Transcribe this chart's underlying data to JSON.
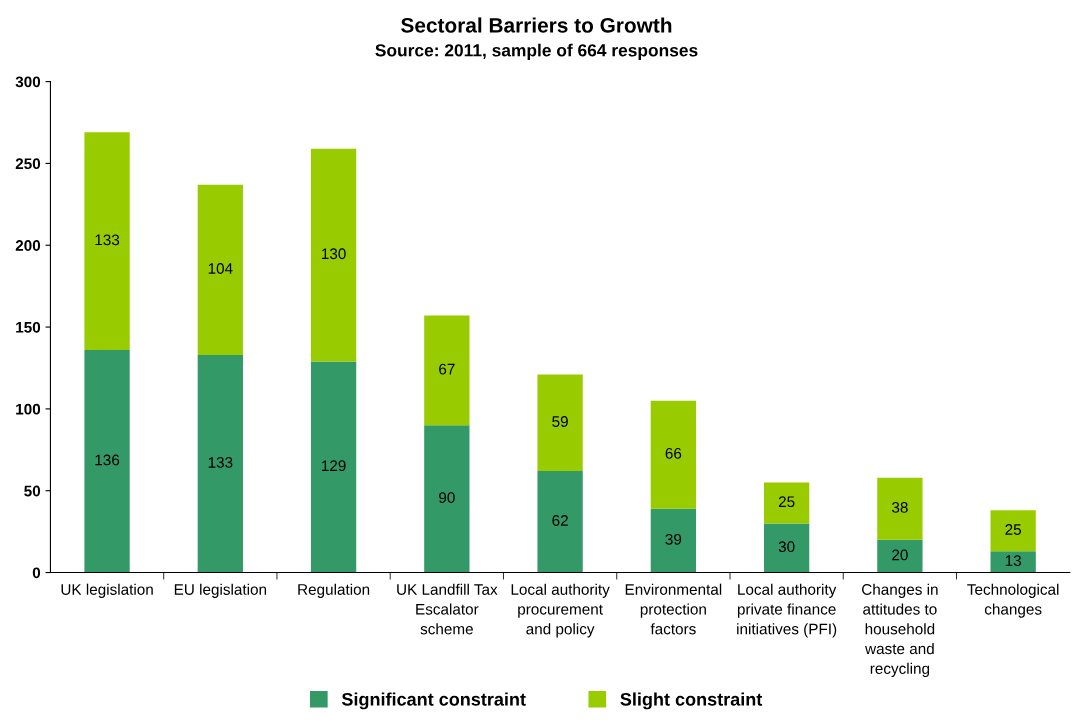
{
  "chart_data": {
    "type": "bar",
    "title": "Sectoral Barriers to Growth",
    "subtitle": "Source: 2011, sample of 664 responses",
    "categories": [
      "UK legislation",
      "EU legislation",
      "Regulation",
      "UK Landfill Tax\nEscalator\nscheme",
      "Local authority\nprocurement\nand policy",
      "Environmental\nprotection\nfactors",
      "Local authority\nprivate finance\ninitiatives (PFI)",
      "Changes in\nattitudes to\nhousehold\nwaste and\nrecycling",
      "Technological\nchanges"
    ],
    "series": [
      {
        "name": "Significant constraint",
        "color": "#339966",
        "values": [
          136,
          133,
          129,
          90,
          62,
          39,
          30,
          20,
          13
        ]
      },
      {
        "name": "Slight constraint",
        "color": "#99cc00",
        "values": [
          133,
          104,
          130,
          67,
          59,
          66,
          25,
          38,
          25
        ]
      }
    ],
    "stacked": true,
    "data_labels": true,
    "ylim": [
      0,
      300
    ],
    "yticks": [
      0,
      50,
      100,
      150,
      200,
      250,
      300
    ],
    "grid": false,
    "legend": "bottom"
  }
}
